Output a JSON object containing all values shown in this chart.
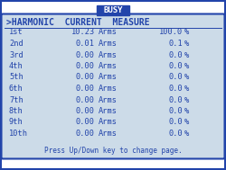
{
  "title": "BUSY",
  "header": ">HARMONIC  CURRENT  MEASURE",
  "rows": [
    {
      "label": "1st",
      "value": "10.23",
      "unit": "Arms",
      "pct": "100.0",
      "pct_sym": "%"
    },
    {
      "label": "2nd",
      "value": " 0.01",
      "unit": "Arms",
      "pct": "  0.1",
      "pct_sym": "%"
    },
    {
      "label": "3rd",
      "value": " 0.00",
      "unit": "Arms",
      "pct": "  0.0",
      "pct_sym": "%"
    },
    {
      "label": "4th",
      "value": " 0.00",
      "unit": "Arms",
      "pct": "  0.0",
      "pct_sym": "%"
    },
    {
      "label": "5th",
      "value": " 0.00",
      "unit": "Arms",
      "pct": "  0.0",
      "pct_sym": "%"
    },
    {
      "label": "6th",
      "value": " 0.00",
      "unit": "Arms",
      "pct": "  0.0",
      "pct_sym": "%"
    },
    {
      "label": "7th",
      "value": " 0.00",
      "unit": "Arms",
      "pct": "  0.0",
      "pct_sym": "%"
    },
    {
      "label": "8th",
      "value": " 0.00",
      "unit": "Arms",
      "pct": "  0.0",
      "pct_sym": "%"
    },
    {
      "label": "9th",
      "value": " 0.00",
      "unit": "Arms",
      "pct": "  0.0",
      "pct_sym": "%"
    },
    {
      "label": "10th",
      "value": " 0.00",
      "unit": "Arms",
      "pct": "  0.0",
      "pct_sym": "%"
    }
  ],
  "footer": "Press Up/Down key to change page.",
  "bg_color": "#ccdbe8",
  "outer_bg": "#ffffff",
  "border_color": "#2244aa",
  "text_color": "#2244aa",
  "title_bg": "#2244aa",
  "title_fg": "#ffffff",
  "font_size": 6.2,
  "header_font_size": 7.0,
  "title_font_size": 6.5,
  "footer_font_size": 5.5
}
